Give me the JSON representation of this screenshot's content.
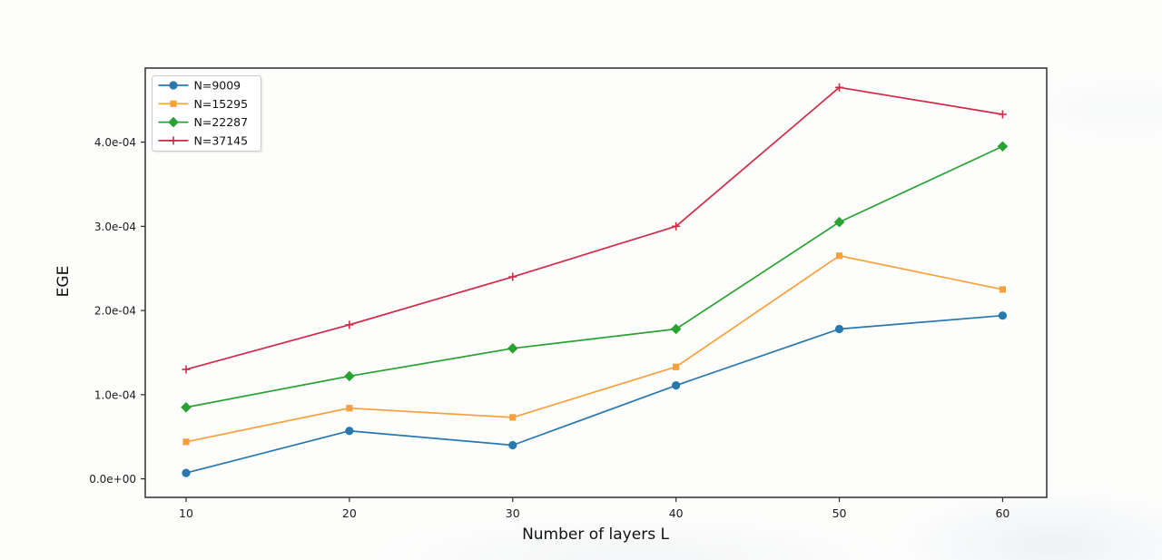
{
  "figure": {
    "background_color": "#fdfdfc",
    "plot_bg_color": "#fdfdfc",
    "spine_color": "#2e2e2e",
    "tick_text_color": "#1c1c1c"
  },
  "chart_data": {
    "type": "line",
    "title": "",
    "xlabel": "Number of layers L",
    "ylabel": "EGE",
    "grid": false,
    "legend_position": "upper-left",
    "x": [
      10,
      20,
      30,
      40,
      50,
      60
    ],
    "xtick_labels": [
      "10",
      "20",
      "30",
      "40",
      "50",
      "60"
    ],
    "ytick_labels": [
      "0.0e+00",
      "1.0e-04",
      "2.0e-04",
      "3.0e-04",
      "4.0e-04"
    ],
    "ytick_values": [
      0,
      0.0001,
      0.0002,
      0.0003,
      0.0004
    ],
    "xlim": [
      7.5,
      62.7
    ],
    "ylim": [
      -2.2e-05,
      0.000488
    ],
    "series": [
      {
        "name": "N=9009",
        "color": "#2878b0",
        "marker": "circle",
        "values": [
          7e-06,
          5.7e-05,
          4e-05,
          0.000111,
          0.000178,
          0.000194
        ]
      },
      {
        "name": "N=15295",
        "color": "#f9a03c",
        "marker": "square",
        "values": [
          4.4e-05,
          8.4e-05,
          7.3e-05,
          0.000133,
          0.000265,
          0.000225
        ]
      },
      {
        "name": "N=22287",
        "color": "#28a232",
        "marker": "diamond",
        "values": [
          8.5e-05,
          0.000122,
          0.000155,
          0.000178,
          0.000305,
          0.000395
        ]
      },
      {
        "name": "N=37145",
        "color": "#cf2b46",
        "marker": "plus",
        "values": [
          0.00013,
          0.000183,
          0.00024,
          0.0003,
          0.000465,
          0.000433
        ]
      }
    ]
  }
}
